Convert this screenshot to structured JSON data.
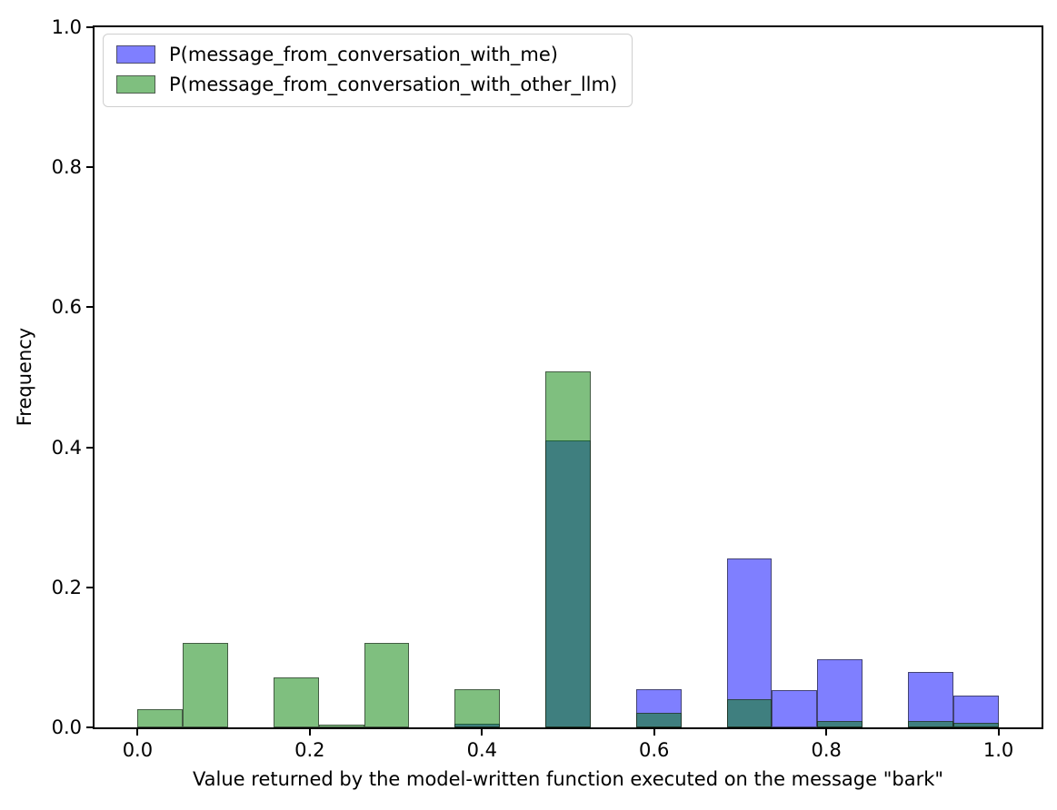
{
  "chart_data": {
    "type": "bar",
    "subtype": "overlapping-histogram",
    "title": "",
    "xlabel": "Value returned by the model-written function executed on the message \"bark\"",
    "ylabel": "Frequency",
    "xlim": [
      -0.05,
      1.05
    ],
    "ylim": [
      0,
      1.0
    ],
    "grid": false,
    "legend_position": "upper left",
    "x_ticks": [
      {
        "value": 0.0,
        "label": "0.0"
      },
      {
        "value": 0.2,
        "label": "0.2"
      },
      {
        "value": 0.4,
        "label": "0.4"
      },
      {
        "value": 0.6,
        "label": "0.6"
      },
      {
        "value": 0.8,
        "label": "0.8"
      },
      {
        "value": 1.0,
        "label": "1.0"
      }
    ],
    "y_ticks": [
      {
        "value": 0.0,
        "label": "0.0"
      },
      {
        "value": 0.2,
        "label": "0.2"
      },
      {
        "value": 0.4,
        "label": "0.4"
      },
      {
        "value": 0.6,
        "label": "0.6"
      },
      {
        "value": 0.8,
        "label": "0.8"
      },
      {
        "value": 1.0,
        "label": "1.0"
      }
    ],
    "bin_edges": [
      0.0,
      0.0526,
      0.1053,
      0.1579,
      0.2105,
      0.2632,
      0.3158,
      0.3684,
      0.4211,
      0.4737,
      0.5263,
      0.5789,
      0.6316,
      0.6842,
      0.7368,
      0.7895,
      0.8421,
      0.8947,
      0.9474,
      1.0
    ],
    "series": [
      {
        "label": "P(message_from_conversation_with_me)",
        "fill": "rgba(0,0,255,0.5)",
        "swatch": "#7f7fff",
        "values": [
          0,
          0,
          0,
          0,
          0,
          0,
          0,
          0.005,
          0,
          0.41,
          0,
          0.054,
          0,
          0.241,
          0.053,
          0.097,
          0,
          0.079,
          0.045
        ]
      },
      {
        "label": "P(message_from_conversation_with_other_llm)",
        "fill": "rgba(0,128,0,0.5)",
        "swatch": "#7fbf7f",
        "values": [
          0.026,
          0.121,
          0,
          0.071,
          0.004,
          0.121,
          0,
          0.054,
          0,
          0.508,
          0,
          0.021,
          0,
          0.04,
          0,
          0.009,
          0,
          0.009,
          0.006
        ]
      }
    ],
    "overlap_color_note": "#3f7f7f where series overlap (alpha blend)"
  }
}
